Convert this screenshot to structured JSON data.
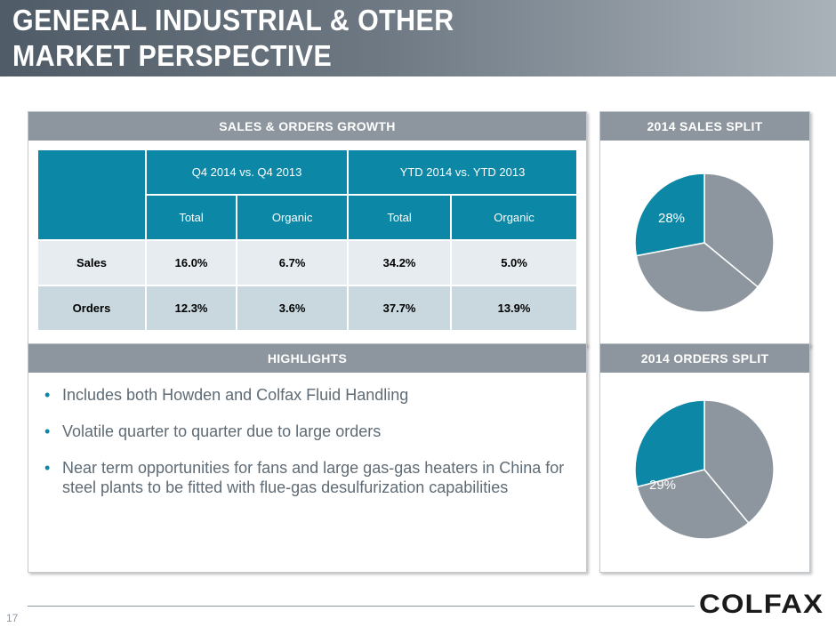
{
  "title": {
    "line1": "GENERAL INDUSTRIAL & OTHER",
    "line2": "MARKET PERSPECTIVE"
  },
  "sales_orders": {
    "header": "SALES & ORDERS GROWTH",
    "group_headers": [
      "Q4 2014 vs. Q4 2013",
      "YTD 2014 vs. YTD 2013"
    ],
    "sub_headers": [
      "Total",
      "Organic",
      "Total",
      "Organic"
    ],
    "rows": [
      {
        "label": "Sales",
        "values": [
          "16.0%",
          "6.7%",
          "34.2%",
          "5.0%"
        ]
      },
      {
        "label": "Orders",
        "values": [
          "12.3%",
          "3.6%",
          "37.7%",
          "13.9%"
        ]
      }
    ]
  },
  "highlights": {
    "header": "HIGHLIGHTS",
    "items": [
      "Includes both Howden and Colfax Fluid Handling",
      "Volatile quarter to quarter due to large orders",
      "Near term opportunities for fans and large gas-gas heaters in China for steel plants to be fitted with flue-gas desulfurization capabilities"
    ]
  },
  "sales_split": {
    "header": "2014 SALES SPLIT",
    "label": "28%",
    "highlight_fraction": 0.28,
    "segments": [
      0.28,
      0.36,
      0.36
    ]
  },
  "orders_split": {
    "header": "2014 ORDERS SPLIT",
    "label": "29%",
    "highlight_fraction": 0.29,
    "segments": [
      0.29,
      0.39,
      0.32
    ]
  },
  "footer": {
    "page_number": "17",
    "logo_text": "COLFAX"
  },
  "colors": {
    "teal": "#0c87a6",
    "gray": "#8d969e",
    "pie_gray": "#8d969e",
    "white": "#ffffff"
  }
}
